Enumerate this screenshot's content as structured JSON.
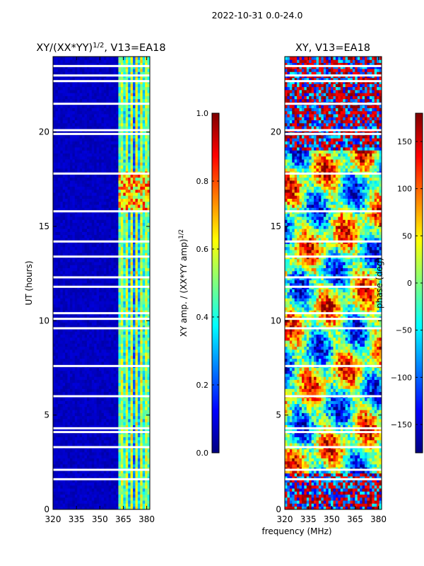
{
  "suptitle": "2022-10-31 0.0-24.0",
  "shared_xlabel": "frequency (MHz)",
  "colors": {
    "jet": [
      "#00007f",
      "#0000ff",
      "#007fff",
      "#00ffff",
      "#7fff7f",
      "#ffff00",
      "#ff7f00",
      "#ff0000",
      "#7f0000"
    ],
    "gap": "#ffffff",
    "axis": "#000000"
  },
  "chart_data": [
    {
      "type": "heatmap",
      "title_base": "XY/(XX*YY)",
      "title_sup": "1/2",
      "title_rest": ", V13=EA18",
      "xlabel": "",
      "ylabel": "UT (hours)",
      "xlim": [
        320,
        382
      ],
      "ylim": [
        0,
        24
      ],
      "xticks": [
        320,
        335,
        350,
        365,
        380
      ],
      "yticks": [
        0,
        5,
        10,
        15,
        20
      ],
      "colorbar": {
        "label_base": "XY amp. / (XX*YY amp)",
        "label_sup": "1/2",
        "range": [
          0.0,
          1.0
        ],
        "ticks": [
          "0.0",
          "0.2",
          "0.4",
          "0.6",
          "0.8",
          "1.0"
        ],
        "tick_values": [
          0.0,
          0.2,
          0.4,
          0.6,
          0.8,
          1.0
        ]
      },
      "gaps_hours": [
        1.6,
        2.1,
        3.3,
        4.1,
        4.3,
        6.0,
        7.6,
        9.6,
        10.1,
        10.4,
        11.8,
        12.3,
        13.4,
        14.2,
        15.8,
        17.8,
        19.9,
        20.1,
        21.5,
        22.7,
        23.0,
        23.5
      ]
    },
    {
      "type": "heatmap",
      "title_base": "XY, V13=EA18",
      "title_sup": "",
      "title_rest": "",
      "xlabel": "frequency (MHz)",
      "ylabel": "",
      "xlim": [
        320,
        382
      ],
      "ylim": [
        0,
        24
      ],
      "xticks": [
        320,
        335,
        350,
        365,
        380
      ],
      "yticks": [
        0,
        5,
        10,
        15,
        20
      ],
      "colorbar": {
        "label_base": "phase (deg)",
        "label_sup": "",
        "range": [
          -180,
          180
        ],
        "ticks": [
          "−150",
          "−100",
          "−50",
          "0",
          "50",
          "100",
          "150"
        ],
        "tick_values": [
          -150,
          -100,
          -50,
          0,
          50,
          100,
          150
        ]
      },
      "gaps_hours": [
        1.6,
        2.1,
        3.3,
        4.1,
        4.3,
        6.0,
        7.6,
        9.6,
        10.1,
        10.4,
        11.8,
        12.3,
        13.4,
        14.2,
        15.8,
        17.8,
        19.9,
        20.1,
        21.5,
        22.7,
        23.0,
        23.5
      ]
    }
  ]
}
